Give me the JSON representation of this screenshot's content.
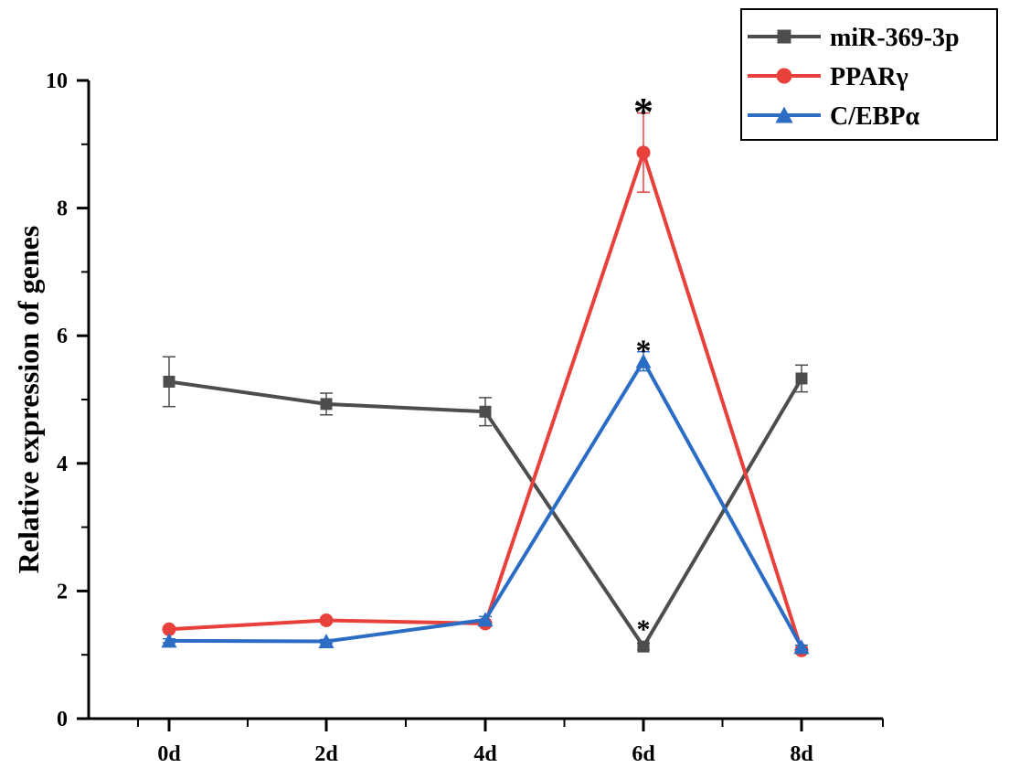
{
  "chart_data": {
    "type": "line",
    "title": "",
    "xlabel": "",
    "ylabel": "Relative expression of genes",
    "categories": [
      "0d",
      "2d",
      "4d",
      "6d",
      "8d"
    ],
    "ylim": [
      0,
      10
    ],
    "yticks": [
      "0",
      "2",
      "4",
      "6",
      "8",
      "10"
    ],
    "legend_position": "top-right",
    "series": [
      {
        "name": "miR-369-3p",
        "color": "#4d4d4d",
        "marker": "square",
        "values": [
          5.28,
          4.93,
          4.81,
          1.13,
          5.33
        ],
        "errors": [
          0.39,
          0.17,
          0.22,
          0.05,
          0.21
        ]
      },
      {
        "name": "PPARγ",
        "color": "#e8403a",
        "marker": "circle",
        "values": [
          1.4,
          1.54,
          1.49,
          8.87,
          1.07
        ],
        "errors": [
          0.03,
          0.03,
          0.04,
          0.62,
          0.03
        ]
      },
      {
        "name": "C/EBPα",
        "color": "#2b6cc4",
        "marker": "triangle",
        "values": [
          1.22,
          1.21,
          1.55,
          5.6,
          1.12
        ],
        "errors": [
          0.03,
          0.03,
          0.05,
          0.15,
          0.03
        ]
      }
    ],
    "annotations": [
      {
        "text": "*",
        "series": "PPARγ",
        "category": "6d"
      },
      {
        "text": "*",
        "series": "C/EBPα",
        "category": "6d"
      },
      {
        "text": "*",
        "series": "miR-369-3p",
        "category": "6d"
      }
    ]
  }
}
